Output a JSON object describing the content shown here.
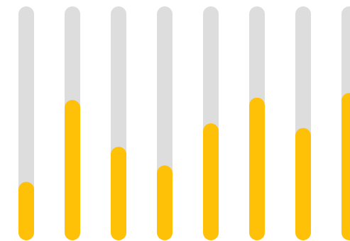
{
  "chart_data": {
    "type": "bar",
    "orientation": "vertical",
    "categories": [
      "",
      "",
      "",
      "",
      "",
      "",
      "",
      ""
    ],
    "values": [
      0.25,
      0.6,
      0.4,
      0.32,
      0.5,
      0.61,
      0.48,
      0.63
    ],
    "ylim": [
      0,
      1
    ],
    "grid": false,
    "legend": "none",
    "colors": {
      "track": "#dddddd",
      "fill": "#ffc107",
      "background": "#ffffff"
    }
  }
}
